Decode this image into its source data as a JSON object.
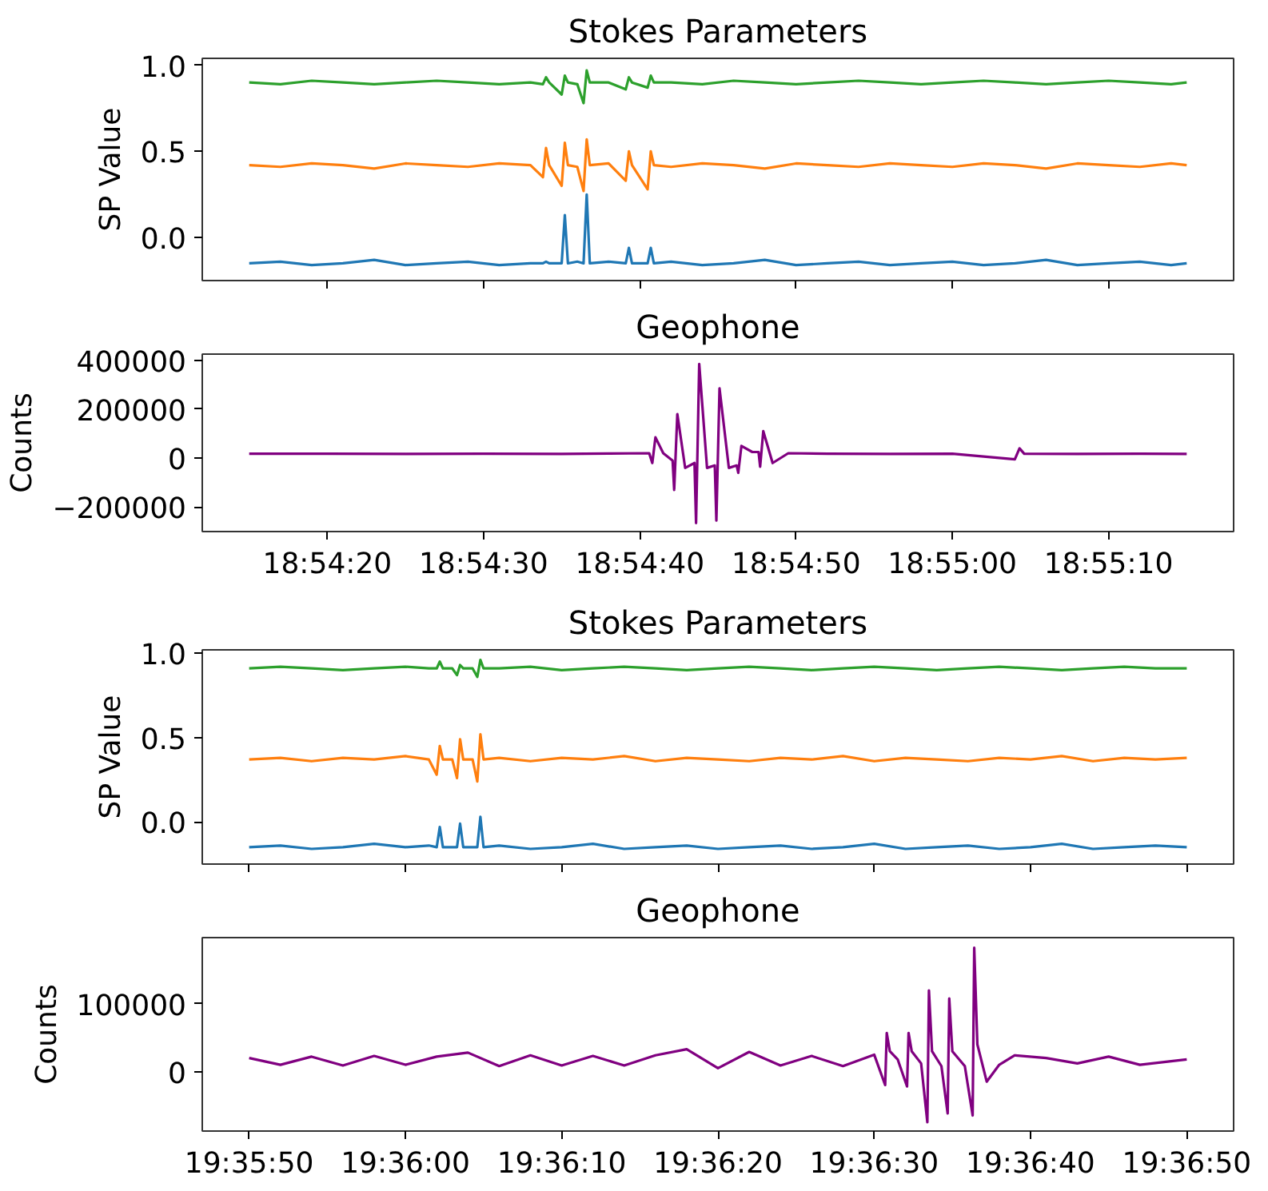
{
  "chart_data": [
    {
      "type": "line",
      "title": "Stokes Parameters",
      "ylabel": "SP Value",
      "tick_labels": "y",
      "x": [
        18.904167,
        18.904722,
        18.905278,
        18.905833,
        18.906389,
        18.906944,
        18.9075,
        18.908056,
        18.908611,
        18.909167,
        18.909389,
        18.909444,
        18.9095,
        18.909722,
        18.909778,
        18.909833,
        18.91,
        18.910111,
        18.910167,
        18.910222,
        18.910556,
        18.910861,
        18.910917,
        18.910972,
        18.91125,
        18.911306,
        18.911361,
        18.911667,
        18.912222,
        18.912778,
        18.913333,
        18.913889,
        18.914444,
        18.915,
        18.915556,
        18.916111,
        18.916667,
        18.917222,
        18.917778,
        18.918333,
        18.918889,
        18.919444,
        18.92,
        18.920556,
        18.920833
      ],
      "series": [
        {
          "color": "#2ca02c",
          "values": [
            0.9,
            0.89,
            0.91,
            0.9,
            0.89,
            0.9,
            0.91,
            0.9,
            0.89,
            0.9,
            0.89,
            0.93,
            0.9,
            0.83,
            0.94,
            0.9,
            0.89,
            0.78,
            0.97,
            0.9,
            0.9,
            0.86,
            0.93,
            0.9,
            0.87,
            0.94,
            0.9,
            0.9,
            0.89,
            0.91,
            0.9,
            0.89,
            0.9,
            0.91,
            0.9,
            0.89,
            0.9,
            0.91,
            0.9,
            0.89,
            0.9,
            0.91,
            0.9,
            0.89,
            0.9
          ]
        },
        {
          "color": "#ff7f0e",
          "values": [
            0.42,
            0.41,
            0.43,
            0.42,
            0.4,
            0.43,
            0.42,
            0.41,
            0.43,
            0.42,
            0.35,
            0.52,
            0.42,
            0.3,
            0.55,
            0.42,
            0.41,
            0.27,
            0.57,
            0.42,
            0.43,
            0.33,
            0.5,
            0.42,
            0.28,
            0.5,
            0.42,
            0.41,
            0.43,
            0.42,
            0.4,
            0.43,
            0.42,
            0.41,
            0.43,
            0.42,
            0.41,
            0.43,
            0.42,
            0.4,
            0.43,
            0.42,
            0.41,
            0.43,
            0.42
          ]
        },
        {
          "color": "#1f77b4",
          "values": [
            -0.15,
            -0.14,
            -0.16,
            -0.15,
            -0.13,
            -0.16,
            -0.15,
            -0.14,
            -0.16,
            -0.15,
            -0.15,
            -0.14,
            -0.15,
            -0.15,
            0.13,
            -0.15,
            -0.14,
            -0.15,
            0.25,
            -0.15,
            -0.14,
            -0.15,
            -0.06,
            -0.15,
            -0.15,
            -0.06,
            -0.15,
            -0.14,
            -0.16,
            -0.15,
            -0.13,
            -0.16,
            -0.15,
            -0.14,
            -0.16,
            -0.15,
            -0.14,
            -0.16,
            -0.15,
            -0.13,
            -0.16,
            -0.15,
            -0.14,
            -0.16,
            -0.15
          ]
        }
      ],
      "xlim": [
        18.903333,
        18.921667
      ],
      "xticks": [
        {
          "value": 18.905556,
          "label": null
        },
        {
          "value": 18.908333,
          "label": null
        },
        {
          "value": 18.911111,
          "label": null
        },
        {
          "value": 18.913889,
          "label": null
        },
        {
          "value": 18.916667,
          "label": null
        },
        {
          "value": 18.919444,
          "label": null
        }
      ],
      "ylim": [
        -0.25,
        1.04
      ],
      "yticks": [
        {
          "value": 0,
          "label": "0.0"
        },
        {
          "value": 0.5,
          "label": "0.5"
        },
        {
          "value": 1,
          "label": "1.0"
        }
      ]
    },
    {
      "type": "line",
      "title": "Geophone",
      "ylabel": "Counts",
      "x": [
        18.904167,
        18.905556,
        18.906944,
        18.908333,
        18.909722,
        18.910556,
        18.911278,
        18.911333,
        18.911389,
        18.911528,
        18.911694,
        18.911722,
        18.911778,
        18.911917,
        18.912083,
        18.912111,
        18.912167,
        18.912306,
        18.912444,
        18.912472,
        18.912528,
        18.912694,
        18.912833,
        18.912861,
        18.912917,
        18.913111,
        18.913222,
        18.91325,
        18.913306,
        18.913472,
        18.91375,
        18.914444,
        18.915556,
        18.916667,
        18.917778,
        18.917861,
        18.917944,
        18.918889,
        18.92,
        18.920833
      ],
      "series": [
        {
          "color": "#800080",
          "values": [
            18000,
            18000,
            17000,
            18000,
            17000,
            19000,
            20000,
            -20000,
            85000,
            20000,
            -10000,
            -130000,
            180000,
            -40000,
            -20000,
            -265000,
            385000,
            -40000,
            -30000,
            -255000,
            285000,
            -40000,
            -30000,
            -60000,
            50000,
            25000,
            25000,
            -35000,
            110000,
            -20000,
            20000,
            18000,
            17000,
            18000,
            -5000,
            40000,
            18000,
            17000,
            18000,
            17000
          ]
        }
      ],
      "xlim": [
        18.903333,
        18.921667
      ],
      "xticks": [
        {
          "value": 18.905556,
          "label": "18:54:20"
        },
        {
          "value": 18.908333,
          "label": "18:54:30"
        },
        {
          "value": 18.911111,
          "label": "18:54:40"
        },
        {
          "value": 18.913889,
          "label": "18:54:50"
        },
        {
          "value": 18.916667,
          "label": "18:55:00"
        },
        {
          "value": 18.919444,
          "label": "18:55:10"
        }
      ],
      "ylim": [
        -300000,
        425000
      ],
      "yticks": [
        {
          "value": -200000,
          "label": "−200000"
        },
        0,
        200000,
        400000
      ]
    },
    {
      "type": "line",
      "title": "Stokes Parameters",
      "ylabel": "SP Value",
      "tick_labels": "y",
      "x": [
        19.597222,
        19.597778,
        19.598333,
        19.598889,
        19.599444,
        19.6,
        19.600417,
        19.600556,
        19.600611,
        19.600667,
        19.600833,
        19.600917,
        19.600972,
        19.601028,
        19.601194,
        19.601278,
        19.601333,
        19.601389,
        19.601667,
        19.602222,
        19.602778,
        19.603333,
        19.603889,
        19.604444,
        19.605,
        19.605556,
        19.606111,
        19.606667,
        19.607222,
        19.607778,
        19.608333,
        19.608889,
        19.609444,
        19.61,
        19.610556,
        19.611111,
        19.611667,
        19.612222,
        19.612778,
        19.613333,
        19.613889
      ],
      "series": [
        {
          "color": "#2ca02c",
          "values": [
            0.91,
            0.92,
            0.91,
            0.9,
            0.91,
            0.92,
            0.91,
            0.91,
            0.95,
            0.91,
            0.91,
            0.87,
            0.93,
            0.91,
            0.91,
            0.86,
            0.96,
            0.91,
            0.91,
            0.92,
            0.9,
            0.91,
            0.92,
            0.91,
            0.9,
            0.91,
            0.92,
            0.91,
            0.9,
            0.91,
            0.92,
            0.91,
            0.9,
            0.91,
            0.92,
            0.91,
            0.9,
            0.91,
            0.92,
            0.91,
            0.91
          ]
        },
        {
          "color": "#ff7f0e",
          "values": [
            0.37,
            0.38,
            0.36,
            0.38,
            0.37,
            0.39,
            0.37,
            0.28,
            0.45,
            0.37,
            0.37,
            0.26,
            0.49,
            0.37,
            0.37,
            0.24,
            0.52,
            0.37,
            0.38,
            0.36,
            0.38,
            0.37,
            0.39,
            0.36,
            0.38,
            0.37,
            0.36,
            0.38,
            0.37,
            0.39,
            0.36,
            0.38,
            0.37,
            0.36,
            0.38,
            0.37,
            0.39,
            0.36,
            0.38,
            0.37,
            0.38
          ]
        },
        {
          "color": "#1f77b4",
          "values": [
            -0.15,
            -0.14,
            -0.16,
            -0.15,
            -0.13,
            -0.15,
            -0.14,
            -0.15,
            -0.03,
            -0.15,
            -0.15,
            -0.15,
            -0.01,
            -0.15,
            -0.15,
            -0.15,
            0.03,
            -0.15,
            -0.14,
            -0.16,
            -0.15,
            -0.13,
            -0.16,
            -0.15,
            -0.14,
            -0.16,
            -0.15,
            -0.14,
            -0.16,
            -0.15,
            -0.13,
            -0.16,
            -0.15,
            -0.14,
            -0.16,
            -0.15,
            -0.13,
            -0.16,
            -0.15,
            -0.14,
            -0.15
          ]
        }
      ],
      "xlim": [
        19.596389,
        19.614722
      ],
      "xticks": [
        {
          "value": 19.597222,
          "label": null
        },
        {
          "value": 19.6,
          "label": null
        },
        {
          "value": 19.602778,
          "label": null
        },
        {
          "value": 19.605556,
          "label": null
        },
        {
          "value": 19.608333,
          "label": null
        },
        {
          "value": 19.611111,
          "label": null
        },
        {
          "value": 19.613889,
          "label": null
        }
      ],
      "ylim": [
        -0.25,
        1.02
      ],
      "yticks": [
        {
          "value": 0,
          "label": "0.0"
        },
        {
          "value": 0.5,
          "label": "0.5"
        },
        {
          "value": 1,
          "label": "1.0"
        }
      ]
    },
    {
      "type": "line",
      "title": "Geophone",
      "ylabel": "Counts",
      "x": [
        19.597222,
        19.597778,
        19.598333,
        19.598889,
        19.599444,
        19.6,
        19.600556,
        19.601111,
        19.601667,
        19.602222,
        19.602778,
        19.603333,
        19.603889,
        19.604444,
        19.605,
        19.605556,
        19.606111,
        19.606667,
        19.607222,
        19.607778,
        19.608333,
        19.608528,
        19.608556,
        19.608611,
        19.60875,
        19.608917,
        19.608944,
        19.609,
        19.609167,
        19.609278,
        19.609306,
        19.609361,
        19.609528,
        19.609639,
        19.609667,
        19.609722,
        19.609944,
        19.610083,
        19.610111,
        19.610167,
        19.610333,
        19.610556,
        19.610833,
        19.611389,
        19.611944,
        19.6125,
        19.613056,
        19.613889
      ],
      "series": [
        {
          "color": "#800080",
          "values": [
            20000,
            10000,
            22000,
            9000,
            23000,
            10000,
            22000,
            28000,
            8000,
            24000,
            9000,
            23000,
            9000,
            24000,
            33000,
            5000,
            29000,
            9000,
            23000,
            8000,
            25000,
            -20000,
            57000,
            30000,
            18000,
            -22000,
            57000,
            30000,
            12000,
            -75000,
            120000,
            30000,
            8000,
            -62000,
            108000,
            30000,
            8000,
            -65000,
            183000,
            40000,
            -15000,
            10000,
            24000,
            20000,
            12000,
            22000,
            10000,
            18000
          ]
        }
      ],
      "xlim": [
        19.596389,
        19.614722
      ],
      "xticks": [
        {
          "value": 19.597222,
          "label": "19:35:50"
        },
        {
          "value": 19.6,
          "label": "19:36:00"
        },
        {
          "value": 19.602778,
          "label": "19:36:10"
        },
        {
          "value": 19.605556,
          "label": "19:36:20"
        },
        {
          "value": 19.608333,
          "label": "19:36:30"
        },
        {
          "value": 19.611111,
          "label": "19:36:40"
        },
        {
          "value": 19.613889,
          "label": "19:36:50"
        }
      ],
      "ylim": [
        -88000,
        198000
      ],
      "yticks": [
        0,
        100000
      ]
    }
  ]
}
